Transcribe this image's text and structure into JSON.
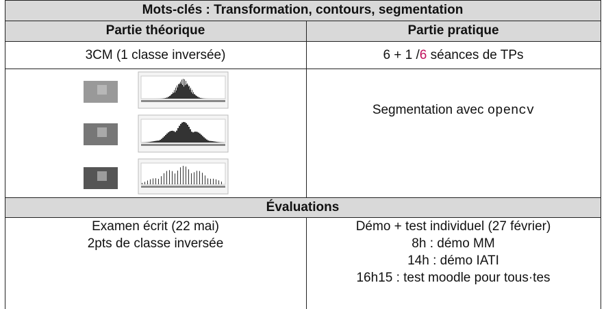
{
  "title": "Mots-clés : Transformation, contours, segmentation",
  "columns": [
    "Partie théorique",
    "Partie pratique"
  ],
  "theory": {
    "sessions": "3CM (1 classe inversée)"
  },
  "practice": {
    "sessions": {
      "before": "6 + 1 /",
      "highlight": "6",
      "after": " séances de TPs"
    },
    "topic": "Segmentation avec",
    "tool": "opencv"
  },
  "evaluations": {
    "title": "Évaluations",
    "theory": [
      "Examen écrit (22 mai)",
      "2pts de classe inversée"
    ],
    "practice": [
      "Démo + test individuel (27 février)",
      "8h : démo MM",
      "14h : démo IATI",
      "16h15 : test moodle pour tous·tes"
    ]
  }
}
